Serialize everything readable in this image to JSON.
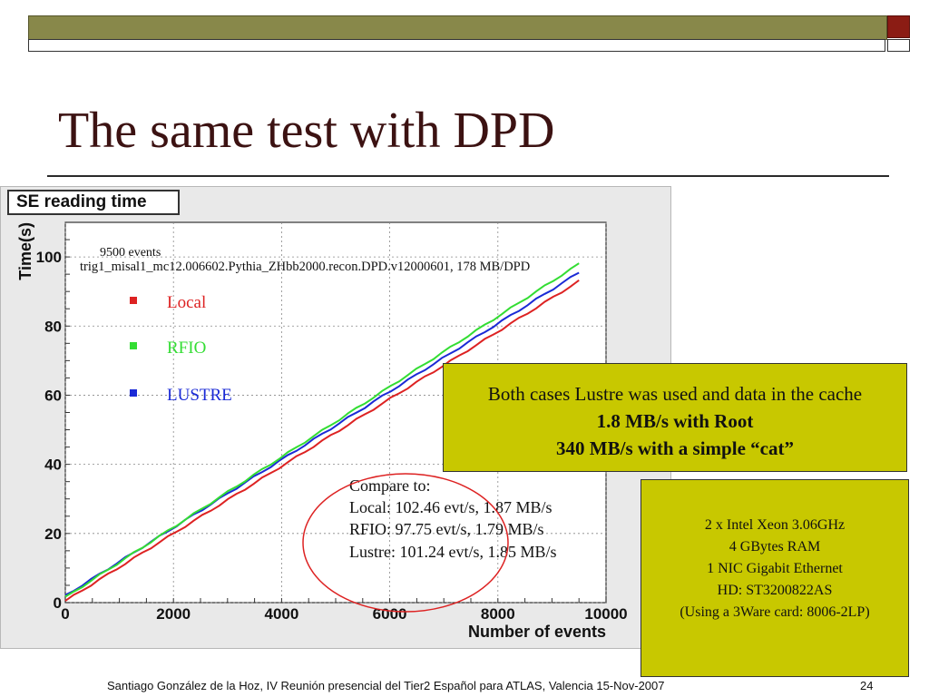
{
  "slide": {
    "title": "The same test with DPD",
    "footer": "Santiago González de la Hoz, IV Reunión presencial del Tier2 Español para ATLAS, Valencia  15-Nov-2007",
    "page_number": "24"
  },
  "note_box": {
    "line1": "Both cases Lustre was used and data in the cache",
    "line2": "1.8 MB/s with Root",
    "line3": "340 MB/s with a simple “cat”"
  },
  "specs_box": {
    "lines": [
      "2 x Intel Xeon  3.06GHz",
      "4 GBytes RAM",
      "1 NIC Gigabit Ethernet",
      "HD: ST3200822AS",
      "(Using a 3Ware card: 8006-2LP)"
    ]
  },
  "colors": {
    "accent_dark_red": "#8b1c14",
    "topbar_olive": "#88884a",
    "note_yellow": "#c8c800",
    "local": "#dd2222",
    "rfio": "#33dd33",
    "lustre": "#1a2ad6"
  },
  "chart_data": {
    "type": "line",
    "title": "SE reading time",
    "xlabel": "Number of events",
    "ylabel": "Time(s)",
    "xlim": [
      0,
      10000
    ],
    "ylim": [
      0,
      110
    ],
    "x_ticks": [
      "0",
      "2000",
      "4000",
      "6000",
      "8000",
      "10000"
    ],
    "y_ticks": [
      "0",
      "20",
      "40",
      "60",
      "80",
      "100"
    ],
    "grid": true,
    "legend_position": "top-left",
    "annotation_events": "9500 events",
    "annotation_dataset": "trig1_misal1_mc12.006602.Pythia_ZHbb2000.recon.DPD.v12000601, 178 MB/DPD",
    "compare_lines": [
      "Compare to:",
      "Local:  102.46 evt/s, 1.87 MB/s",
      "RFIO:   97.75 evt/s,  1.79 MB/s",
      "Lustre: 101.24 evt/s, 1.85 MB/s"
    ],
    "series": [
      {
        "name": "Local",
        "color": "#dd2222",
        "x": [
          0,
          9500
        ],
        "y": [
          0.5,
          93
        ]
      },
      {
        "name": "RFIO",
        "color": "#33dd33",
        "x": [
          0,
          9500
        ],
        "y": [
          1.5,
          98
        ]
      },
      {
        "name": "LUSTRE",
        "color": "#1a2ad6",
        "x": [
          0,
          9500
        ],
        "y": [
          2,
          95.5
        ]
      }
    ]
  }
}
